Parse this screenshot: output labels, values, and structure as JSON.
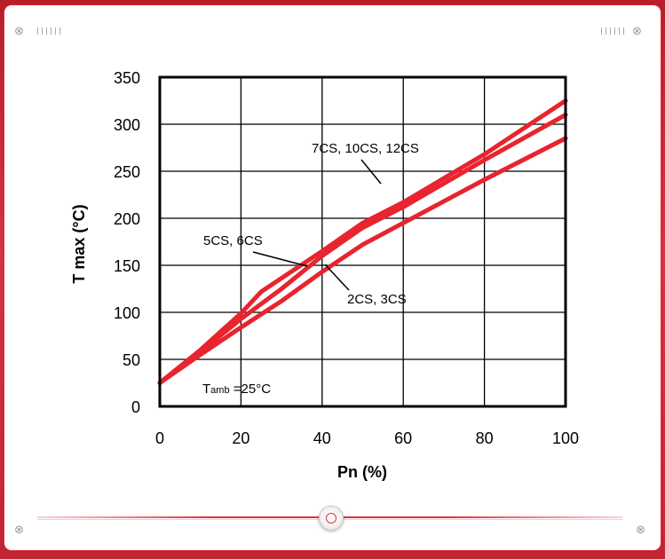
{
  "window": {
    "corner_icon": "⊗",
    "accent_color": "#e0303c",
    "background_color": "#c9283a"
  },
  "slider": {
    "value": 0.5
  },
  "chart_data": {
    "type": "line",
    "title": "",
    "xlabel": "Pn (%)",
    "ylabel": "T max  (°C)",
    "xlim": [
      0,
      100
    ],
    "ylim": [
      0,
      350
    ],
    "xticks": [
      0,
      20,
      40,
      60,
      80,
      100
    ],
    "yticks": [
      0,
      50,
      100,
      150,
      200,
      250,
      300,
      350
    ],
    "grid": true,
    "line_color": "#e8242f",
    "series": [
      {
        "x": [
          0,
          10,
          20,
          25,
          40,
          50,
          60,
          80,
          100
        ],
        "y": [
          25,
          60,
          99,
          122,
          165,
          195,
          217,
          268,
          325
        ]
      },
      {
        "x": [
          0,
          10,
          20,
          30,
          40,
          50,
          60,
          80,
          100
        ],
        "y": [
          25,
          58,
          93,
          125,
          160,
          190,
          212,
          262,
          310
        ]
      },
      {
        "x": [
          0,
          10,
          20,
          30,
          40,
          50,
          60,
          80,
          100
        ],
        "y": [
          25,
          55,
          84,
          112,
          143,
          172,
          195,
          241,
          285
        ]
      }
    ],
    "annotations": [
      {
        "text": "7CS, 10CS, 12CS",
        "x": 58,
        "y": 220
      },
      {
        "text": "5CS, 6CS",
        "x": 37,
        "y": 150
      },
      {
        "text": "2CS, 3CS",
        "x": 40,
        "y": 146
      }
    ],
    "condition": {
      "main": "T",
      "sub": "amb",
      "rest": " =25°C"
    }
  }
}
